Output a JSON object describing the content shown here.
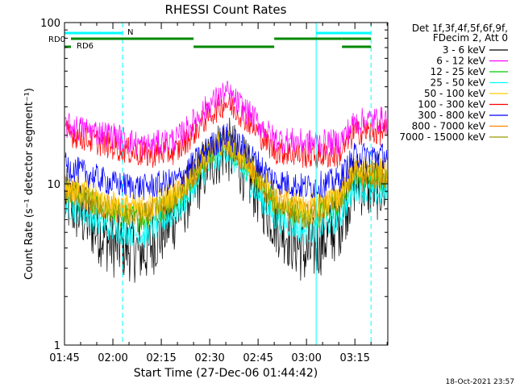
{
  "chart_data": {
    "type": "line",
    "title": "RHESSI Count Rates",
    "xlabel": "Start Time (27-Dec-06 01:44:42)",
    "ylabel": "Count Rate (s⁻¹ detector segment⁻¹)",
    "ylim": [
      1,
      100
    ],
    "yscale": "log",
    "ytick_labels": [
      "1",
      "10",
      "100"
    ],
    "xlim_minutes": [
      0.3,
      100.5
    ],
    "xtick_labels": [
      "01:45",
      "02:00",
      "02:15",
      "02:30",
      "02:45",
      "03:00",
      "03:15"
    ],
    "xtick_minutes": [
      0.3,
      15.3,
      30.3,
      45.3,
      60.3,
      75.3,
      90.3
    ],
    "legend": {
      "placement": "right",
      "header": [
        "Det 1f,3f,4f,5f,6f,9f,",
        "FDecim 2, Att 0"
      ]
    },
    "series": [
      {
        "name": "3 - 6 keV",
        "color": "#000000",
        "x": [
          "01:45",
          "02:00",
          "02:10",
          "02:20",
          "02:30",
          "02:35",
          "02:40",
          "02:50",
          "03:00",
          "03:10",
          "03:15",
          "03:20"
        ],
        "values": [
          8.0,
          4.2,
          3.8,
          6.5,
          14,
          17,
          13,
          6.0,
          3.6,
          5.5,
          10.5,
          9.5
        ]
      },
      {
        "name": "6 - 12 keV",
        "color": "#ff00ff",
        "x": [
          "01:45",
          "02:00",
          "02:10",
          "02:20",
          "02:30",
          "02:35",
          "02:40",
          "02:50",
          "03:00",
          "03:10",
          "03:15",
          "03:20"
        ],
        "values": [
          23,
          20,
          17,
          19,
          31,
          37,
          30,
          19,
          18,
          18,
          24,
          25
        ]
      },
      {
        "name": "12 - 25 keV",
        "color": "#00cc00",
        "x": [
          "01:45",
          "02:00",
          "02:10",
          "02:20",
          "02:30",
          "02:35",
          "02:40",
          "02:50",
          "03:00",
          "03:10",
          "03:15",
          "03:20"
        ],
        "values": [
          9.0,
          6.5,
          6.0,
          8.0,
          15,
          18,
          14,
          7.5,
          6.0,
          7.5,
          11,
          10.5
        ]
      },
      {
        "name": "25 - 50 keV",
        "color": "#00ffff",
        "x": [
          "01:45",
          "02:00",
          "02:10",
          "02:20",
          "02:30",
          "02:35",
          "02:40",
          "02:50",
          "03:00",
          "03:10",
          "03:15",
          "03:20"
        ],
        "values": [
          7.5,
          5.2,
          4.8,
          6.8,
          13,
          16,
          12,
          6.2,
          5.0,
          6.0,
          9.5,
          8.7
        ]
      },
      {
        "name": "50 - 100 keV",
        "color": "#ffcc00",
        "x": [
          "01:45",
          "02:00",
          "02:10",
          "02:20",
          "02:30",
          "02:35",
          "02:40",
          "02:50",
          "03:00",
          "03:10",
          "03:15",
          "03:20"
        ],
        "values": [
          10,
          7.5,
          7.0,
          9.0,
          16,
          19,
          15,
          8.5,
          7.0,
          8.5,
          12.5,
          12
        ]
      },
      {
        "name": "100 - 300 keV",
        "color": "#ff0000",
        "x": [
          "01:45",
          "02:00",
          "02:10",
          "02:20",
          "02:30",
          "02:35",
          "02:40",
          "02:50",
          "03:00",
          "03:10",
          "03:15",
          "03:20"
        ],
        "values": [
          21,
          17,
          15,
          16,
          27,
          32,
          27,
          16,
          15,
          15,
          21,
          21
        ]
      },
      {
        "name": "300 - 800 keV",
        "color": "#0000ff",
        "x": [
          "01:45",
          "02:00",
          "02:10",
          "02:20",
          "02:30",
          "02:35",
          "02:40",
          "02:50",
          "03:00",
          "03:10",
          "03:15",
          "03:20"
        ],
        "values": [
          13,
          10,
          9.5,
          10.5,
          17,
          20,
          17,
          10.5,
          9.5,
          10.5,
          15,
          15
        ]
      },
      {
        "name": "800 - 7000 keV",
        "color": "#ff8800",
        "x": [
          "01:45",
          "02:00",
          "02:10",
          "02:20",
          "02:30",
          "02:35",
          "02:40",
          "02:50",
          "03:00",
          "03:10",
          "03:15",
          "03:20"
        ],
        "values": [
          9.5,
          7.0,
          6.5,
          8.5,
          15.5,
          18.5,
          14.5,
          8.0,
          6.5,
          8.0,
          12,
          11.5
        ]
      },
      {
        "name": "7000 - 15000 keV",
        "color": "#999900",
        "x": [
          "01:45",
          "02:00",
          "02:10",
          "02:20",
          "02:30",
          "02:35",
          "02:40",
          "02:50",
          "03:00",
          "03:10",
          "03:15",
          "03:20"
        ],
        "values": [
          9.2,
          6.8,
          6.3,
          8.3,
          15.2,
          18.2,
          14.2,
          7.8,
          6.3,
          7.8,
          11.8,
          11.3
        ]
      }
    ],
    "vertical_lines": [
      {
        "x": "01:45",
        "style": "solid",
        "color": "#00ffff"
      },
      {
        "x": "02:03",
        "style": "dashed",
        "color": "#00ffff"
      },
      {
        "x": "03:03",
        "style": "solid",
        "color": "#00ffff"
      },
      {
        "x": "03:20",
        "style": "dashed",
        "color": "#00ffff"
      }
    ],
    "flag_bars": {
      "night": {
        "label": "N",
        "color": "#00ffff",
        "intervals": [
          [
            "01:45",
            "02:03"
          ],
          [
            "03:03",
            "03:20"
          ]
        ]
      },
      "rd0": {
        "label": "RD0",
        "color": "#008800",
        "intervals": [
          [
            "01:47",
            "02:25"
          ],
          [
            "02:50",
            "03:11"
          ],
          [
            "03:11",
            "03:20"
          ]
        ]
      },
      "rd6": {
        "label": "RD6",
        "color": "#008800",
        "intervals": [
          [
            "01:45",
            "01:47"
          ],
          [
            "02:25",
            "02:50"
          ],
          [
            "03:11",
            "03:20"
          ]
        ]
      }
    },
    "annotation_stamp": "18-Oct-2021 23:57",
    "grid": false
  }
}
